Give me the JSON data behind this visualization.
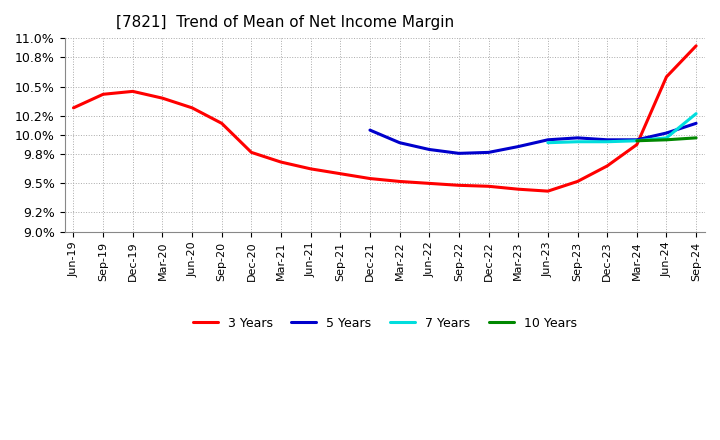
{
  "title": "[7821]  Trend of Mean of Net Income Margin",
  "title_fontsize": 11,
  "background_color": "#ffffff",
  "plot_bg_color": "#ffffff",
  "grid_color": "#aaaaaa",
  "ylim": [
    9.0,
    11.0
  ],
  "yticks": [
    9.0,
    9.2,
    9.5,
    9.8,
    10.0,
    10.2,
    10.5,
    10.8,
    11.0
  ],
  "ytick_labels": [
    "9.0%",
    "9.2%",
    "9.5%",
    "9.8%",
    "10.0%",
    "10.2%",
    "10.5%",
    "10.8%",
    "11.0%"
  ],
  "x_labels": [
    "Jun-19",
    "Sep-19",
    "Dec-19",
    "Mar-20",
    "Jun-20",
    "Sep-20",
    "Dec-20",
    "Mar-21",
    "Jun-21",
    "Sep-21",
    "Dec-21",
    "Mar-22",
    "Jun-22",
    "Sep-22",
    "Dec-22",
    "Mar-23",
    "Jun-23",
    "Sep-23",
    "Dec-23",
    "Mar-24",
    "Jun-24",
    "Sep-24"
  ],
  "series": {
    "3 Years": {
      "color": "#ff0000",
      "data": [
        10.28,
        10.42,
        10.45,
        10.38,
        10.28,
        10.12,
        9.82,
        9.72,
        9.65,
        9.6,
        9.55,
        9.52,
        9.5,
        9.48,
        9.47,
        9.44,
        9.42,
        9.52,
        9.68,
        9.9,
        10.6,
        10.92
      ]
    },
    "5 Years": {
      "color": "#0000cc",
      "data": [
        null,
        null,
        null,
        null,
        null,
        null,
        null,
        null,
        null,
        null,
        10.05,
        9.92,
        9.85,
        9.81,
        9.82,
        9.88,
        9.95,
        9.97,
        9.95,
        9.95,
        10.02,
        10.12
      ]
    },
    "7 Years": {
      "color": "#00dddd",
      "data": [
        null,
        null,
        null,
        null,
        null,
        null,
        null,
        null,
        null,
        null,
        null,
        null,
        null,
        null,
        null,
        null,
        9.92,
        9.93,
        9.93,
        9.94,
        9.97,
        10.22
      ]
    },
    "10 Years": {
      "color": "#008800",
      "data": [
        null,
        null,
        null,
        null,
        null,
        null,
        null,
        null,
        null,
        null,
        null,
        null,
        null,
        null,
        null,
        null,
        null,
        null,
        null,
        9.94,
        9.95,
        9.97
      ]
    }
  },
  "legend_entries": [
    "3 Years",
    "5 Years",
    "7 Years",
    "10 Years"
  ],
  "line_width": 2.2
}
